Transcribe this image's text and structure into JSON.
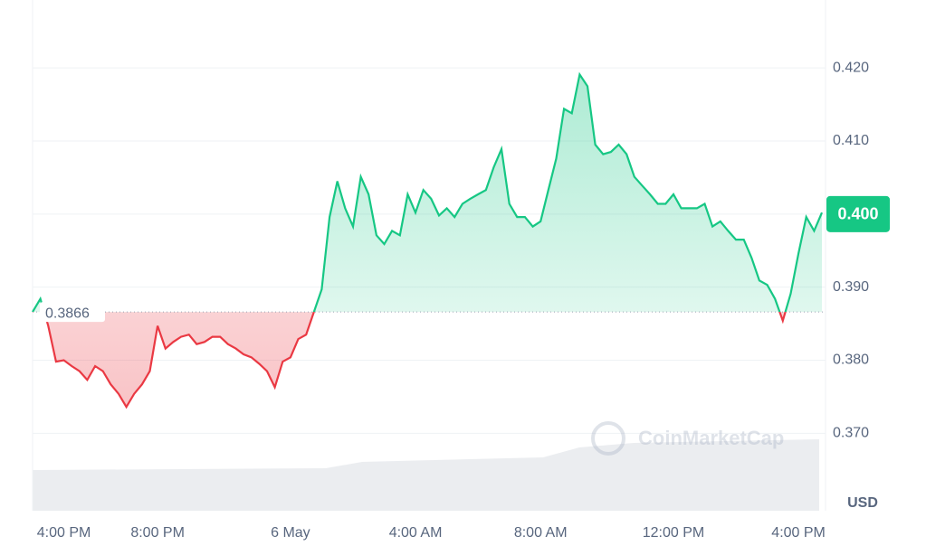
{
  "chart_data": {
    "type": "line",
    "categories": [
      null,
      null,
      null,
      null,
      "4:00 PM",
      null,
      null,
      null,
      null,
      null,
      null,
      null,
      null,
      null,
      null,
      null,
      "8:00 PM",
      null,
      null,
      null,
      null,
      null,
      null,
      null,
      null,
      null,
      null,
      null,
      null,
      null,
      null,
      null,
      null,
      "6 May",
      null,
      null,
      null,
      null,
      null,
      null,
      null,
      null,
      null,
      null,
      null,
      null,
      null,
      null,
      null,
      "4:00 AM",
      null,
      null,
      null,
      null,
      null,
      null,
      null,
      null,
      null,
      null,
      null,
      null,
      null,
      null,
      null,
      "8:00 AM",
      null,
      null,
      null,
      null,
      null,
      null,
      null,
      null,
      null,
      null,
      null,
      null,
      null,
      null,
      null,
      null,
      "12:00 PM",
      null,
      null,
      null,
      null,
      null,
      null,
      null,
      null,
      null,
      null,
      null,
      null,
      null,
      null,
      null,
      "4:00 PM",
      null,
      null,
      null
    ],
    "series": [
      {
        "values": [
          0.3866,
          0.3884,
          0.3847,
          0.3798,
          0.38,
          0.3792,
          0.3785,
          0.3773,
          0.3792,
          0.3785,
          0.3767,
          0.3754,
          0.3736,
          0.3754,
          0.3767,
          0.3785,
          0.3847,
          0.3816,
          0.3825,
          0.3832,
          0.3835,
          0.3822,
          0.3825,
          0.3832,
          0.3832,
          0.3822,
          0.3816,
          0.3808,
          0.3804,
          0.3795,
          0.3785,
          0.3763,
          0.3798,
          0.3804,
          0.3829,
          0.3835,
          0.3866,
          0.3897,
          0.3996,
          0.4045,
          0.4008,
          0.3983,
          0.4051,
          0.4027,
          0.3971,
          0.3959,
          0.3977,
          0.3971,
          0.4027,
          0.4002,
          0.4033,
          0.4021,
          0.3998,
          0.4008,
          0.3996,
          0.4014,
          0.4021,
          0.4027,
          0.4033,
          0.4064,
          0.4089,
          0.4014,
          0.3996,
          0.3996,
          0.3983,
          0.399,
          0.4033,
          0.4076,
          0.4144,
          0.4138,
          0.4191,
          0.4175,
          0.4095,
          0.4082,
          0.4085,
          0.4095,
          0.4082,
          0.4051,
          0.4039,
          0.4027,
          0.4014,
          0.4014,
          0.4027,
          0.4008,
          0.4008,
          0.4008,
          0.4014,
          0.3983,
          0.399,
          0.3977,
          0.3965,
          0.3965,
          0.394,
          0.3909,
          0.3903,
          0.3884,
          0.3854,
          0.3891,
          0.3946,
          0.3996,
          0.3977,
          0.4002
        ],
        "color_up": "#16c784",
        "color_down": "#ea3943"
      }
    ],
    "ylim": [
      0.3594,
      0.4293
    ],
    "yticks": [
      {
        "value": 0.37,
        "label": "0.370"
      },
      {
        "value": 0.38,
        "label": "0.380"
      },
      {
        "value": 0.39,
        "label": "0.390"
      },
      {
        "value": 0.4,
        "label": "0.400"
      },
      {
        "value": 0.41,
        "label": "0.410"
      },
      {
        "value": 0.42,
        "label": "0.420"
      }
    ],
    "reference_line": 0.3866,
    "current_price": {
      "value": 0.4,
      "label": "0.400"
    },
    "unit": "USD",
    "watermark": "CoinMarketCap",
    "grid": true
  }
}
